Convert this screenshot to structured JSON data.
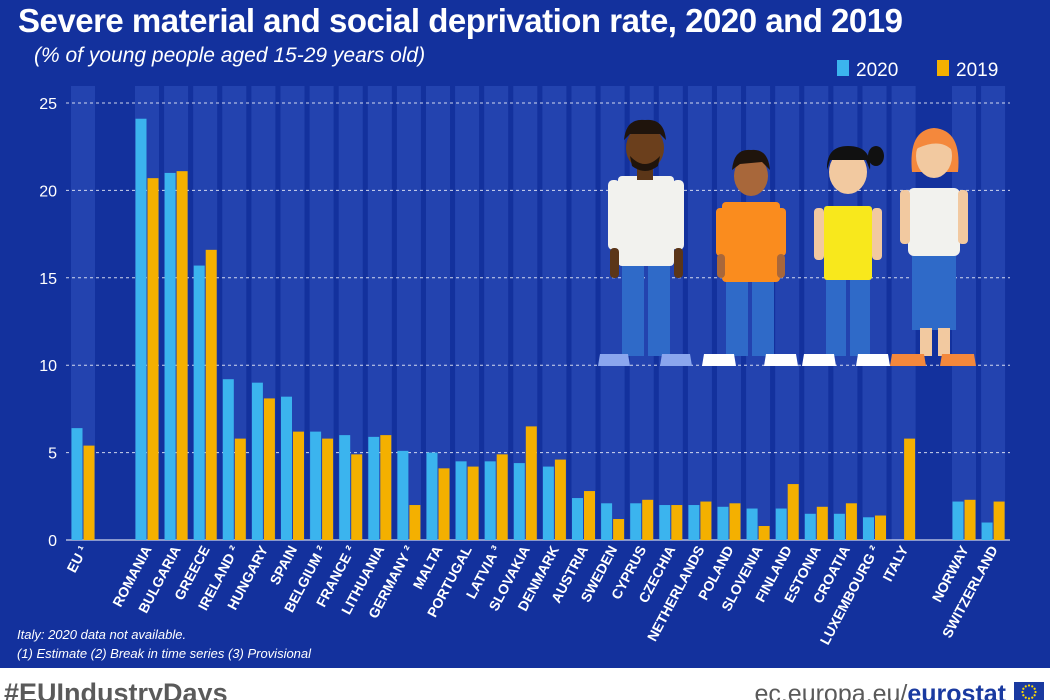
{
  "header": {
    "title": "Severe material and social deprivation rate, 2020 and 2019",
    "subtitle": "(% of young people aged 15-29 years old)"
  },
  "colors": {
    "background": "#13319d",
    "series_2020": "#3bb4ee",
    "series_2019": "#f4b000",
    "stripe": "#2a4ab5",
    "text": "#ffffff"
  },
  "chart_data": {
    "type": "bar",
    "title": "Severe material and social deprivation rate, 2020 and 2019",
    "subtitle": "(% of young people aged 15-29 years old)",
    "ylim": [
      0,
      25
    ],
    "yticks": [
      0,
      5,
      10,
      15,
      20,
      25
    ],
    "grid": true,
    "legend_position": "top-right",
    "categories": [
      "EU ¹",
      "ROMANIA",
      "BULGARIA",
      "GREECE",
      "IRELAND ²",
      "HUNGARY",
      "SPAIN",
      "BELGIUM ²",
      "FRANCE ²",
      "LITHUANIA",
      "GERMANY ²",
      "MALTA",
      "PORTUGAL",
      "LATVIA ³",
      "SLOVAKIA",
      "DENMARK",
      "AUSTRIA",
      "SWEDEN",
      "CYPRUS",
      "CZECHIA",
      "NETHERLANDS",
      "POLAND",
      "SLOVENIA",
      "FINLAND",
      "ESTONIA",
      "CROATIA",
      "LUXEMBOURG ²",
      "ITALY",
      "NORWAY",
      "SWITZERLAND"
    ],
    "series": [
      {
        "name": "2020",
        "values": [
          6.4,
          24.1,
          21.0,
          15.7,
          9.2,
          9.0,
          8.2,
          6.2,
          6.0,
          5.9,
          5.1,
          5.0,
          4.5,
          4.5,
          4.4,
          4.2,
          2.4,
          2.1,
          2.1,
          2.0,
          2.0,
          1.9,
          1.8,
          1.8,
          1.5,
          1.5,
          1.3,
          null,
          2.2,
          1.0
        ]
      },
      {
        "name": "2019",
        "values": [
          5.4,
          20.7,
          21.1,
          16.6,
          5.8,
          8.1,
          6.2,
          5.8,
          4.9,
          6.0,
          2.0,
          4.1,
          4.2,
          4.9,
          6.5,
          4.6,
          2.8,
          1.2,
          2.3,
          2.0,
          2.2,
          2.1,
          0.8,
          3.2,
          1.9,
          2.1,
          1.4,
          5.8,
          2.3,
          2.2
        ]
      }
    ]
  },
  "notes": {
    "italy": "Italy: 2020 data not available.",
    "legend": "(1) Estimate (2) Break in time series (3) Provisional"
  },
  "footer": {
    "hashtag": "#EUIndustryDays",
    "website_prefix": "ec.europa.eu/",
    "website_brand": "eurostat"
  }
}
